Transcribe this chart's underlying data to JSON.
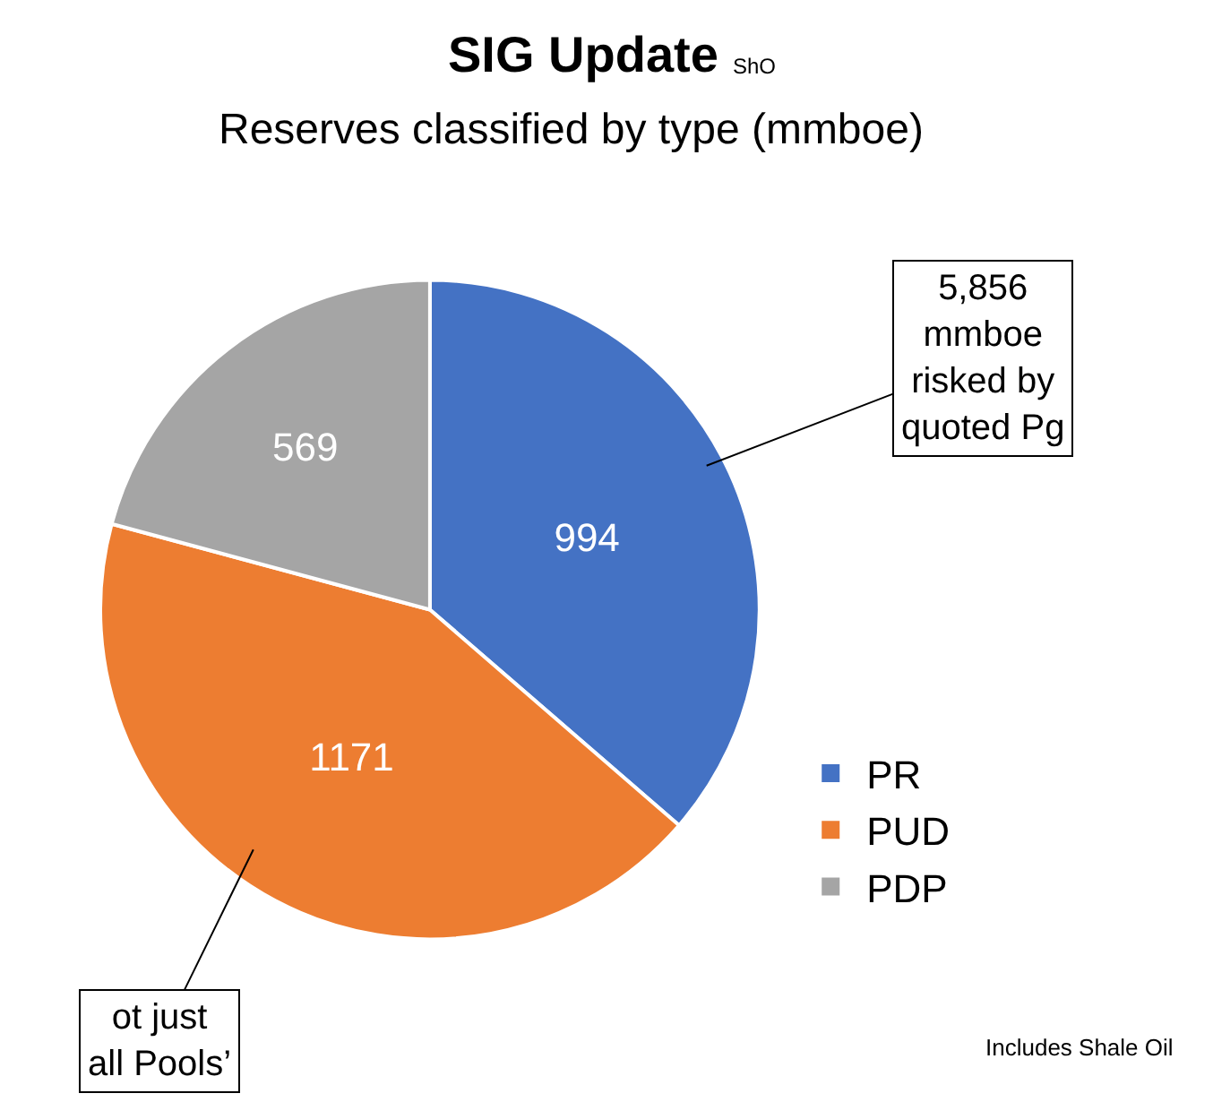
{
  "chart_data": {
    "type": "pie",
    "title": "SIG Update",
    "subtitle": "Reserves classified by type (mmboe)",
    "categories": [
      "PR",
      "PUD",
      "PDP"
    ],
    "values": [
      994,
      1171,
      569
    ],
    "colors": [
      "#4472c4",
      "#ed7d31",
      "#a5a5a5"
    ],
    "data_labels": true,
    "legend": "right",
    "annotations": [
      "ShO",
      "5,856\nmmboe\nrisked by\nquoted Pg",
      "ot just\nall Pools’",
      "Includes Shale Oil"
    ]
  }
}
